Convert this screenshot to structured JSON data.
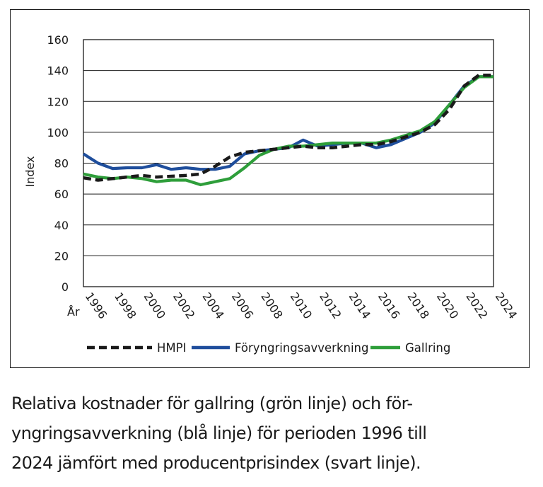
{
  "chart_data": {
    "type": "line",
    "xlabel": "År",
    "ylabel": "Index",
    "x": [
      1996,
      1997,
      1998,
      1999,
      2000,
      2001,
      2002,
      2003,
      2004,
      2005,
      2006,
      2007,
      2008,
      2009,
      2010,
      2011,
      2012,
      2013,
      2014,
      2015,
      2016,
      2017,
      2018,
      2019,
      2020,
      2021,
      2022,
      2023,
      2024
    ],
    "xticks": [
      "1996",
      "1998",
      "2000",
      "2002",
      "2004",
      "2006",
      "2008",
      "2010",
      "2012",
      "2014",
      "2016",
      "2018",
      "2020",
      "2022",
      "2024"
    ],
    "xlim": [
      1996,
      2024
    ],
    "ylim": [
      0,
      160
    ],
    "yticks": [
      0,
      20,
      40,
      60,
      80,
      100,
      120,
      140,
      160
    ],
    "grid": true,
    "legend_position": "bottom",
    "series": [
      {
        "name": "HMPI",
        "color": "#1a1a1a",
        "style": "dashed",
        "values": [
          70.5,
          69,
          70,
          71,
          72,
          71,
          71.5,
          72,
          73,
          78,
          84,
          87,
          88,
          89,
          90,
          91,
          90,
          90,
          91,
          92,
          92,
          94,
          97,
          100,
          105,
          115,
          130,
          137,
          137
        ]
      },
      {
        "name": "Föryngringsavverkning",
        "color": "#1f4e9c",
        "style": "solid",
        "values": [
          86,
          80,
          76.5,
          77,
          77,
          79,
          76,
          77,
          76,
          76,
          78,
          86,
          88,
          89,
          90,
          95,
          91,
          92,
          93,
          93,
          90,
          92,
          96,
          100,
          106,
          118,
          130,
          136,
          136
        ]
      },
      {
        "name": "Gallring",
        "color": "#2e9e3a",
        "style": "solid",
        "values": [
          73,
          71,
          70,
          71,
          70,
          68,
          69,
          69,
          66,
          68,
          70,
          77,
          85,
          89,
          91,
          91,
          92,
          93,
          93,
          93,
          93,
          95,
          98,
          101,
          107,
          118,
          129,
          136,
          136
        ]
      }
    ]
  },
  "caption": {
    "line1": "Relativa kostnader för gallring (grön linje) och för-",
    "line2": "yngringsavverkning (blå linje) för perioden 1996 till",
    "line3": "2024 jämfört med producentprisindex (svart linje)."
  }
}
